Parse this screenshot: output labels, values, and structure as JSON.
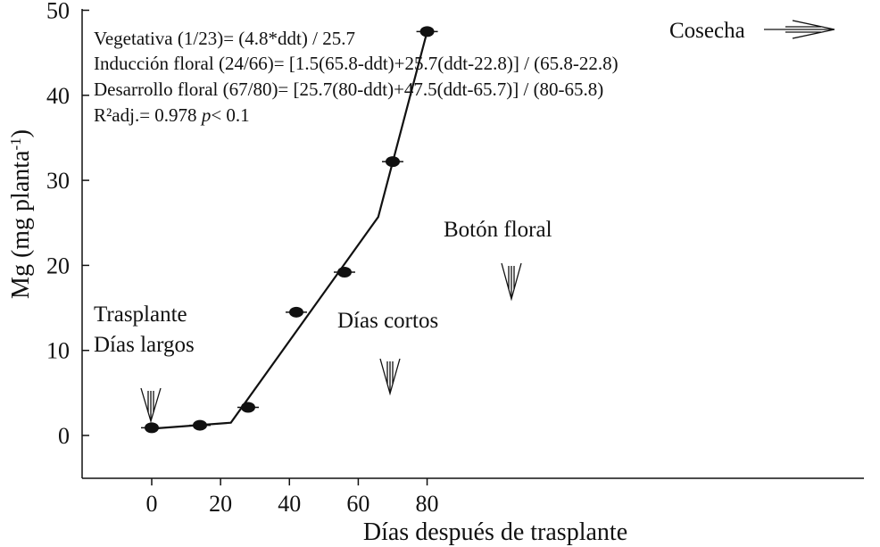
{
  "chart_data": {
    "type": "scatter",
    "xlabel": "Días después de trasplante",
    "ylabel_main": "Mg (mg planta",
    "ylabel_sup": "-1",
    "ylabel_close": ")",
    "xlim": [
      -10,
      85
    ],
    "ylim": [
      -5,
      50
    ],
    "x_ticks": [
      0,
      20,
      40,
      60,
      80
    ],
    "y_ticks": [
      0,
      10,
      20,
      30,
      40,
      50
    ],
    "series": [
      {
        "points": [
          {
            "x": 0,
            "y": 0.9
          },
          {
            "x": 14,
            "y": 1.2
          },
          {
            "x": 28,
            "y": 3.3
          },
          {
            "x": 42,
            "y": 14.5
          },
          {
            "x": 56,
            "y": 19.2
          },
          {
            "x": 70,
            "y": 32.2
          },
          {
            "x": 80,
            "y": 47.5
          }
        ]
      }
    ],
    "fitted_line": [
      {
        "x": 0,
        "y": 0.8
      },
      {
        "x": 23,
        "y": 1.5
      },
      {
        "x": 65.8,
        "y": 25.7
      },
      {
        "x": 80,
        "y": 47.5
      }
    ],
    "equations": {
      "line1": "Vegetativa (1/23)= (4.8*ddt) / 25.7",
      "line2": "Inducción floral (24/66)= [1.5(65.8-ddt)+25.7(ddt-22.8)] / (65.8-22.8)",
      "line3": "Desarrollo floral (67/80)= [25.7(80-ddt)+47.5(ddt-65.7)] / (80-65.8)",
      "r2_prefix": "R²adj.= 0.978 ",
      "r2_p": "p",
      "r2_suffix": "< 0.1"
    },
    "annotations": {
      "trasplante_line1": "Trasplante",
      "trasplante_line2": "Días largos",
      "dias_cortos": "Días cortos",
      "boton_floral": "Botón floral",
      "cosecha": "Cosecha"
    }
  }
}
